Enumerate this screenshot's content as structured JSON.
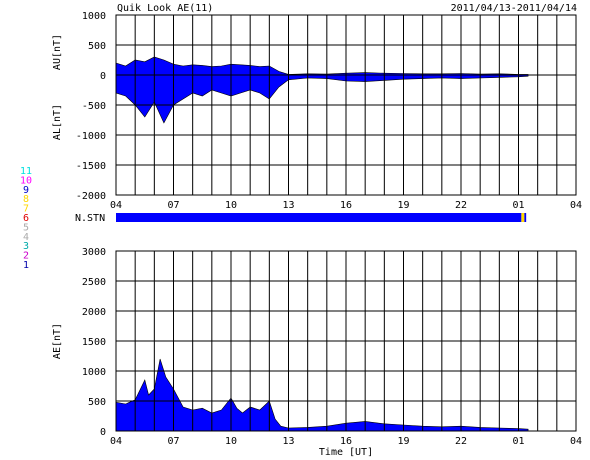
{
  "header": {
    "title": "Quik Look AE(11)",
    "date_range": "2011/04/13-2011/04/14"
  },
  "station_key": {
    "labels": [
      "11",
      "10",
      "9",
      "8",
      "7",
      "6",
      "5",
      "4",
      "3",
      "2",
      "1"
    ],
    "colors": [
      "#00e0e0",
      "#ff00ff",
      "#0000cc",
      "#ffd700",
      "#ffd700",
      "#e00000",
      "#aaaaaa",
      "#aaaaaa",
      "#00aaaa",
      "#cc00cc",
      "#0000aa"
    ]
  },
  "status_bar": {
    "label": "N.STN",
    "color": "#0000ff",
    "marker_color": "#ffd700",
    "gap_hours": [
      25.15,
      25.4
    ]
  },
  "colors": {
    "fill": "#0000ff",
    "grid": "#000000"
  },
  "xaxis": {
    "label": "Time [UT]",
    "ticks": [
      "04",
      "07",
      "10",
      "13",
      "16",
      "19",
      "22",
      "01",
      "04"
    ],
    "range_hours": [
      4,
      28
    ]
  },
  "chart_data": [
    {
      "type": "area",
      "ylabel_upper": "AU[nT]",
      "ylabel_lower": "AL[nT]",
      "ylim": [
        -2000,
        1000
      ],
      "yticks": [
        "1000",
        "500",
        "0",
        "-500",
        "-1000",
        "-1500",
        "-2000"
      ],
      "series": [
        {
          "x": [
            4,
            4.5,
            5,
            5.5,
            6,
            6.5,
            7,
            7.5,
            8,
            8.5,
            9,
            9.5,
            10,
            10.5,
            11,
            11.5,
            12,
            12.5,
            13,
            14,
            15,
            16,
            17,
            18,
            19,
            20,
            21,
            22,
            23,
            24,
            25,
            25.5
          ],
          "values": [
            200,
            150,
            250,
            220,
            300,
            250,
            180,
            150,
            170,
            160,
            140,
            150,
            180,
            170,
            160,
            140,
            150,
            60,
            10,
            20,
            15,
            30,
            40,
            30,
            25,
            20,
            20,
            25,
            15,
            20,
            10,
            10
          ]
        },
        {
          "x": [
            4,
            4.5,
            5,
            5.5,
            6,
            6.5,
            7,
            7.5,
            8,
            8.5,
            9,
            9.5,
            10,
            10.5,
            11,
            11.5,
            12,
            12.5,
            13,
            14,
            15,
            16,
            17,
            18,
            19,
            20,
            21,
            22,
            23,
            24,
            25,
            25.5
          ],
          "values": [
            -300,
            -350,
            -500,
            -700,
            -450,
            -800,
            -500,
            -400,
            -300,
            -350,
            -250,
            -300,
            -350,
            -300,
            -250,
            -300,
            -400,
            -200,
            -80,
            -50,
            -60,
            -100,
            -110,
            -90,
            -70,
            -60,
            -50,
            -60,
            -50,
            -40,
            -30,
            -20
          ]
        }
      ]
    },
    {
      "type": "area",
      "ylabel": "AE[nT]",
      "ylim": [
        0,
        3000
      ],
      "yticks": [
        "3000",
        "2500",
        "2000",
        "1500",
        "1000",
        "500",
        "0"
      ],
      "x": [
        4,
        4.5,
        5,
        5.5,
        5.7,
        6,
        6.3,
        6.6,
        7,
        7.5,
        8,
        8.5,
        9,
        9.5,
        10,
        10.3,
        10.6,
        11,
        11.5,
        12,
        12.3,
        12.6,
        13,
        14,
        15,
        16,
        17,
        18,
        19,
        20,
        21,
        22,
        23,
        24,
        25,
        25.5
      ],
      "values": [
        480,
        450,
        520,
        850,
        600,
        700,
        1200,
        900,
        700,
        400,
        350,
        380,
        300,
        350,
        550,
        380,
        300,
        400,
        350,
        500,
        200,
        80,
        50,
        60,
        80,
        130,
        160,
        120,
        100,
        80,
        70,
        80,
        60,
        50,
        40,
        30
      ]
    }
  ]
}
